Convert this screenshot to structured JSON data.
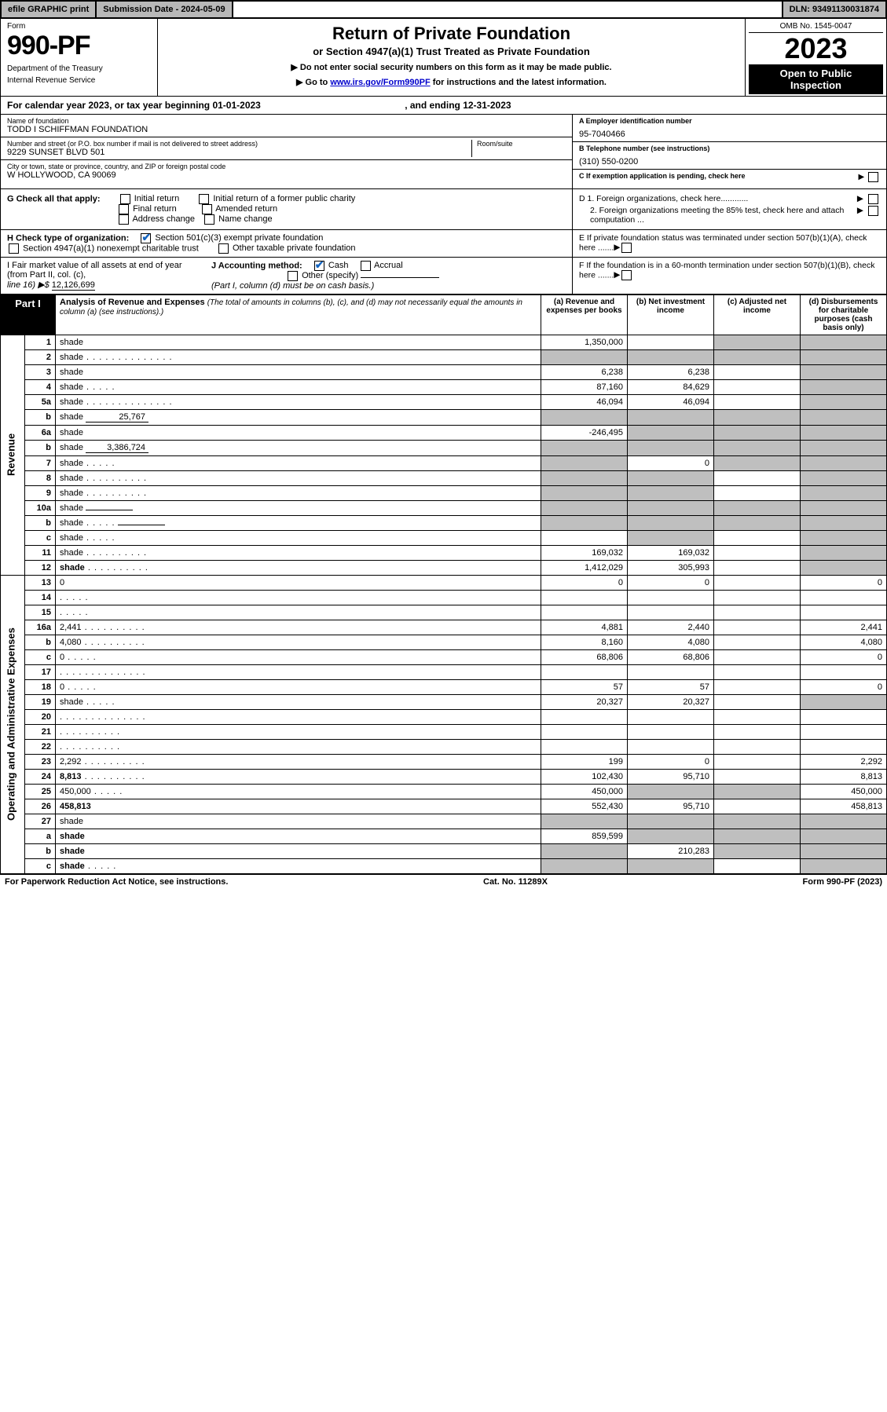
{
  "top_bar": {
    "efile": "efile GRAPHIC print",
    "submission": "Submission Date - 2024-05-09",
    "dln": "DLN: 93491130031874"
  },
  "header": {
    "form_label": "Form",
    "form_number": "990-PF",
    "dept1": "Department of the Treasury",
    "dept2": "Internal Revenue Service",
    "title": "Return of Private Foundation",
    "subtitle": "or Section 4947(a)(1) Trust Treated as Private Foundation",
    "instr1": "▶ Do not enter social security numbers on this form as it may be made public.",
    "instr2_pre": "▶ Go to ",
    "instr2_link": "www.irs.gov/Form990PF",
    "instr2_post": " for instructions and the latest information.",
    "omb": "OMB No. 1545-0047",
    "year": "2023",
    "open1": "Open to Public",
    "open2": "Inspection"
  },
  "cal_year": {
    "pre": "For calendar year 2023, or tax year beginning ",
    "begin": "01-01-2023",
    "mid": " , and ending ",
    "end": "12-31-2023"
  },
  "entity": {
    "name_lbl": "Name of foundation",
    "name": "TODD I SCHIFFMAN FOUNDATION",
    "addr_lbl": "Number and street (or P.O. box number if mail is not delivered to street address)",
    "room_lbl": "Room/suite",
    "addr": "9229 SUNSET BLVD 501",
    "city_lbl": "City or town, state or province, country, and ZIP or foreign postal code",
    "city": "W HOLLYWOOD, CA  90069",
    "a_lbl": "A Employer identification number",
    "a_val": "95-7040466",
    "b_lbl": "B Telephone number (see instructions)",
    "b_val": "(310) 550-0200",
    "c_lbl": "C If exemption application is pending, check here"
  },
  "g": {
    "label": "G Check all that apply:",
    "opts": [
      "Initial return",
      "Final return",
      "Address change",
      "Initial return of a former public charity",
      "Amended return",
      "Name change"
    ],
    "d1": "D 1. Foreign organizations, check here............",
    "d2": "2. Foreign organizations meeting the 85% test, check here and attach computation ...",
    "e": "E  If private foundation status was terminated under section 507(b)(1)(A), check here .......",
    "f": "F  If the foundation is in a 60-month termination under section 507(b)(1)(B), check here ......."
  },
  "h": {
    "label": "H Check type of organization:",
    "opt1": "Section 501(c)(3) exempt private foundation",
    "opt2": "Section 4947(a)(1) nonexempt charitable trust",
    "opt3": "Other taxable private foundation"
  },
  "i": {
    "label": "I Fair market value of all assets at end of year (from Part II, col. (c),",
    "line": "line 16) ▶$ ",
    "value": "12,126,699",
    "j_label": "J Accounting method:",
    "j_cash": "Cash",
    "j_accrual": "Accrual",
    "j_other": "Other (specify)",
    "j_note": "(Part I, column (d) must be on cash basis.)"
  },
  "part1": {
    "tab": "Part I",
    "title": "Analysis of Revenue and Expenses ",
    "title_note": "(The total of amounts in columns (b), (c), and (d) may not necessarily equal the amounts in column (a) (see instructions).)",
    "col_a": "(a)  Revenue and expenses per books",
    "col_b": "(b)  Net investment income",
    "col_c": "(c)  Adjusted net income",
    "col_d": "(d)  Disbursements for charitable purposes (cash basis only)"
  },
  "sections": {
    "revenue": "Revenue",
    "expenses": "Operating and Administrative Expenses"
  },
  "rows": [
    {
      "n": "1",
      "d": "shade",
      "a": "1,350,000",
      "b": "",
      "c": "shade"
    },
    {
      "n": "2",
      "d": "shade",
      "dots": "long",
      "a": "shade",
      "b": "shade",
      "c": "shade"
    },
    {
      "n": "3",
      "d": "shade",
      "a": "6,238",
      "b": "6,238",
      "c": ""
    },
    {
      "n": "4",
      "d": "shade",
      "dots": "short",
      "a": "87,160",
      "b": "84,629",
      "c": ""
    },
    {
      "n": "5a",
      "d": "shade",
      "dots": "long",
      "a": "46,094",
      "b": "46,094",
      "c": ""
    },
    {
      "n": "b",
      "d": "shade",
      "blank": "25,767",
      "a": "shade",
      "b": "shade",
      "c": "shade"
    },
    {
      "n": "6a",
      "d": "shade",
      "a": "-246,495",
      "b": "shade",
      "c": "shade"
    },
    {
      "n": "b",
      "d": "shade",
      "blank": "3,386,724",
      "a": "shade",
      "b": "shade",
      "c": "shade"
    },
    {
      "n": "7",
      "d": "shade",
      "dots": "short",
      "a": "shade",
      "b": "0",
      "c": "shade"
    },
    {
      "n": "8",
      "d": "shade",
      "dots": "med",
      "a": "shade",
      "b": "shade",
      "c": ""
    },
    {
      "n": "9",
      "d": "shade",
      "dots": "med",
      "a": "shade",
      "b": "shade",
      "c": ""
    },
    {
      "n": "10a",
      "d": "shade",
      "blankempty": true,
      "a": "shade",
      "b": "shade",
      "c": "shade"
    },
    {
      "n": "b",
      "d": "shade",
      "dots": "short",
      "blankempty": true,
      "a": "shade",
      "b": "shade",
      "c": "shade"
    },
    {
      "n": "c",
      "d": "shade",
      "dots": "short",
      "a": "",
      "b": "shade",
      "c": ""
    },
    {
      "n": "11",
      "d": "shade",
      "dots": "med",
      "a": "169,032",
      "b": "169,032",
      "c": ""
    },
    {
      "n": "12",
      "d": "shade",
      "dots": "med",
      "bold": true,
      "a": "1,412,029",
      "b": "305,993",
      "c": ""
    },
    {
      "n": "13",
      "d": "0",
      "a": "0",
      "b": "0",
      "c": ""
    },
    {
      "n": "14",
      "d": "",
      "dots": "short",
      "a": "",
      "b": "",
      "c": ""
    },
    {
      "n": "15",
      "d": "",
      "dots": "short",
      "a": "",
      "b": "",
      "c": ""
    },
    {
      "n": "16a",
      "d": "2,441",
      "dots": "med",
      "a": "4,881",
      "b": "2,440",
      "c": ""
    },
    {
      "n": "b",
      "d": "4,080",
      "dots": "med",
      "a": "8,160",
      "b": "4,080",
      "c": ""
    },
    {
      "n": "c",
      "d": "0",
      "dots": "short",
      "a": "68,806",
      "b": "68,806",
      "c": ""
    },
    {
      "n": "17",
      "d": "",
      "dots": "long",
      "a": "",
      "b": "",
      "c": ""
    },
    {
      "n": "18",
      "d": "0",
      "dots": "short",
      "a": "57",
      "b": "57",
      "c": ""
    },
    {
      "n": "19",
      "d": "shade",
      "dots": "short",
      "a": "20,327",
      "b": "20,327",
      "c": ""
    },
    {
      "n": "20",
      "d": "",
      "dots": "long",
      "a": "",
      "b": "",
      "c": ""
    },
    {
      "n": "21",
      "d": "",
      "dots": "med",
      "a": "",
      "b": "",
      "c": ""
    },
    {
      "n": "22",
      "d": "",
      "dots": "med",
      "a": "",
      "b": "",
      "c": ""
    },
    {
      "n": "23",
      "d": "2,292",
      "dots": "med",
      "a": "199",
      "b": "0",
      "c": ""
    },
    {
      "n": "24",
      "d": "8,813",
      "dots": "med",
      "bold": true,
      "a": "102,430",
      "b": "95,710",
      "c": ""
    },
    {
      "n": "25",
      "d": "450,000",
      "dots": "short",
      "a": "450,000",
      "b": "shade",
      "c": "shade"
    },
    {
      "n": "26",
      "d": "458,813",
      "bold": true,
      "a": "552,430",
      "b": "95,710",
      "c": ""
    },
    {
      "n": "27",
      "d": "shade",
      "a": "shade",
      "b": "shade",
      "c": "shade"
    },
    {
      "n": "a",
      "d": "shade",
      "bold": true,
      "a": "859,599",
      "b": "shade",
      "c": "shade"
    },
    {
      "n": "b",
      "d": "shade",
      "bold": true,
      "a": "shade",
      "b": "210,283",
      "c": "shade"
    },
    {
      "n": "c",
      "d": "shade",
      "dots": "short",
      "bold": true,
      "a": "shade",
      "b": "shade",
      "c": ""
    }
  ],
  "footer": {
    "left": "For Paperwork Reduction Act Notice, see instructions.",
    "mid": "Cat. No. 11289X",
    "right": "Form 990-PF (2023)"
  }
}
